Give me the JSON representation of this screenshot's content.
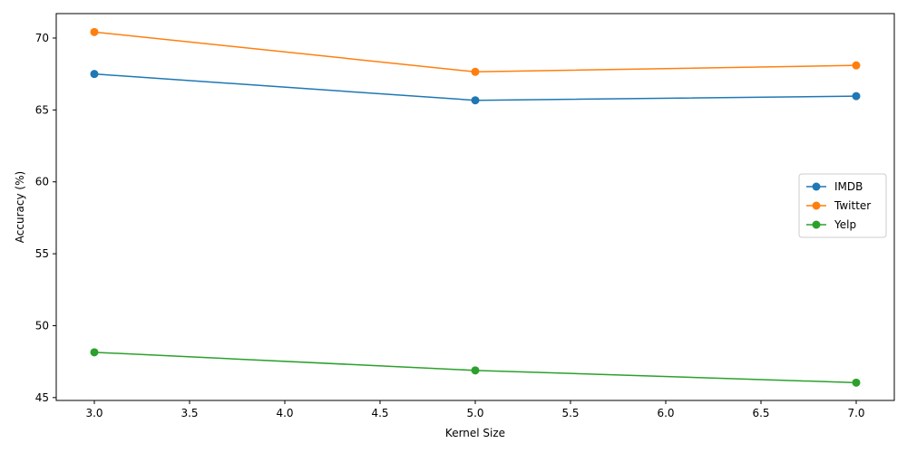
{
  "chart_data": {
    "type": "line",
    "title": "",
    "xlabel": "Kernel Size",
    "ylabel": "Accuracy (%)",
    "x": [
      3,
      5,
      7
    ],
    "series": [
      {
        "name": "IMDB",
        "values": [
          67.5,
          65.67,
          65.96
        ],
        "color": "#1f77b4"
      },
      {
        "name": "Twitter",
        "values": [
          70.42,
          67.65,
          68.1
        ],
        "color": "#ff7f0e"
      },
      {
        "name": "Yelp",
        "values": [
          48.15,
          46.89,
          46.04
        ],
        "color": "#2ca02c"
      }
    ],
    "xlim": [
      2.8,
      7.2
    ],
    "ylim": [
      44.8,
      71.7
    ],
    "xticks": [
      3.0,
      3.5,
      4.0,
      4.5,
      5.0,
      5.5,
      6.0,
      6.5,
      7.0
    ],
    "xtick_labels": [
      "3.0",
      "3.5",
      "4.0",
      "4.5",
      "5.0",
      "5.5",
      "6.0",
      "6.5",
      "7.0"
    ],
    "yticks": [
      45,
      50,
      55,
      60,
      65,
      70
    ],
    "ytick_labels": [
      "45",
      "50",
      "55",
      "60",
      "65",
      "70"
    ],
    "grid": false,
    "legend": "center-right",
    "marker": "circle"
  }
}
